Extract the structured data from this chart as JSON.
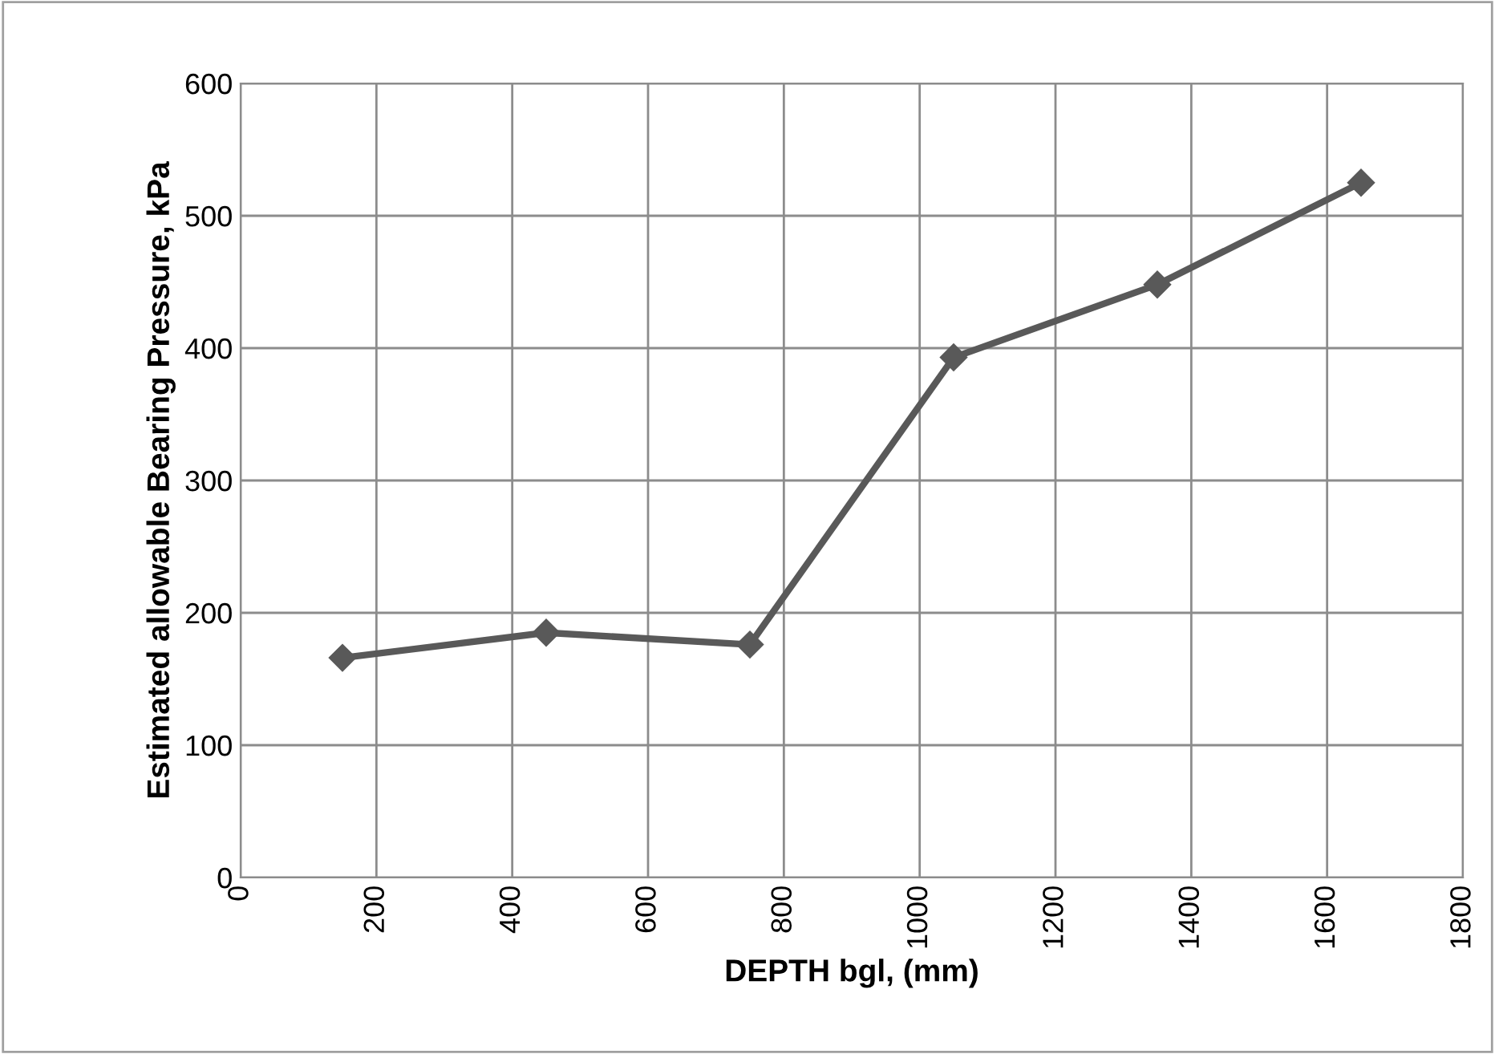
{
  "chart_data": {
    "type": "line",
    "xlabel": "DEPTH bgl, (mm)",
    "ylabel": "Estimated allowable Bearing Pressure, kPa",
    "x": [
      150,
      450,
      750,
      1050,
      1350,
      1650
    ],
    "series": [
      {
        "color": "#595959",
        "values": [
          166,
          185,
          176,
          393,
          448,
          525
        ]
      }
    ],
    "xlim": [
      0,
      1800
    ],
    "xticks": [
      0,
      200,
      400,
      600,
      800,
      1000,
      1200,
      1400,
      1600,
      1800
    ],
    "ylim": [
      0,
      600
    ],
    "yticks": [
      0,
      100,
      200,
      300,
      400,
      500,
      600
    ],
    "grid": true,
    "marker": "diamond",
    "line_style": "solid",
    "legend": false
  }
}
